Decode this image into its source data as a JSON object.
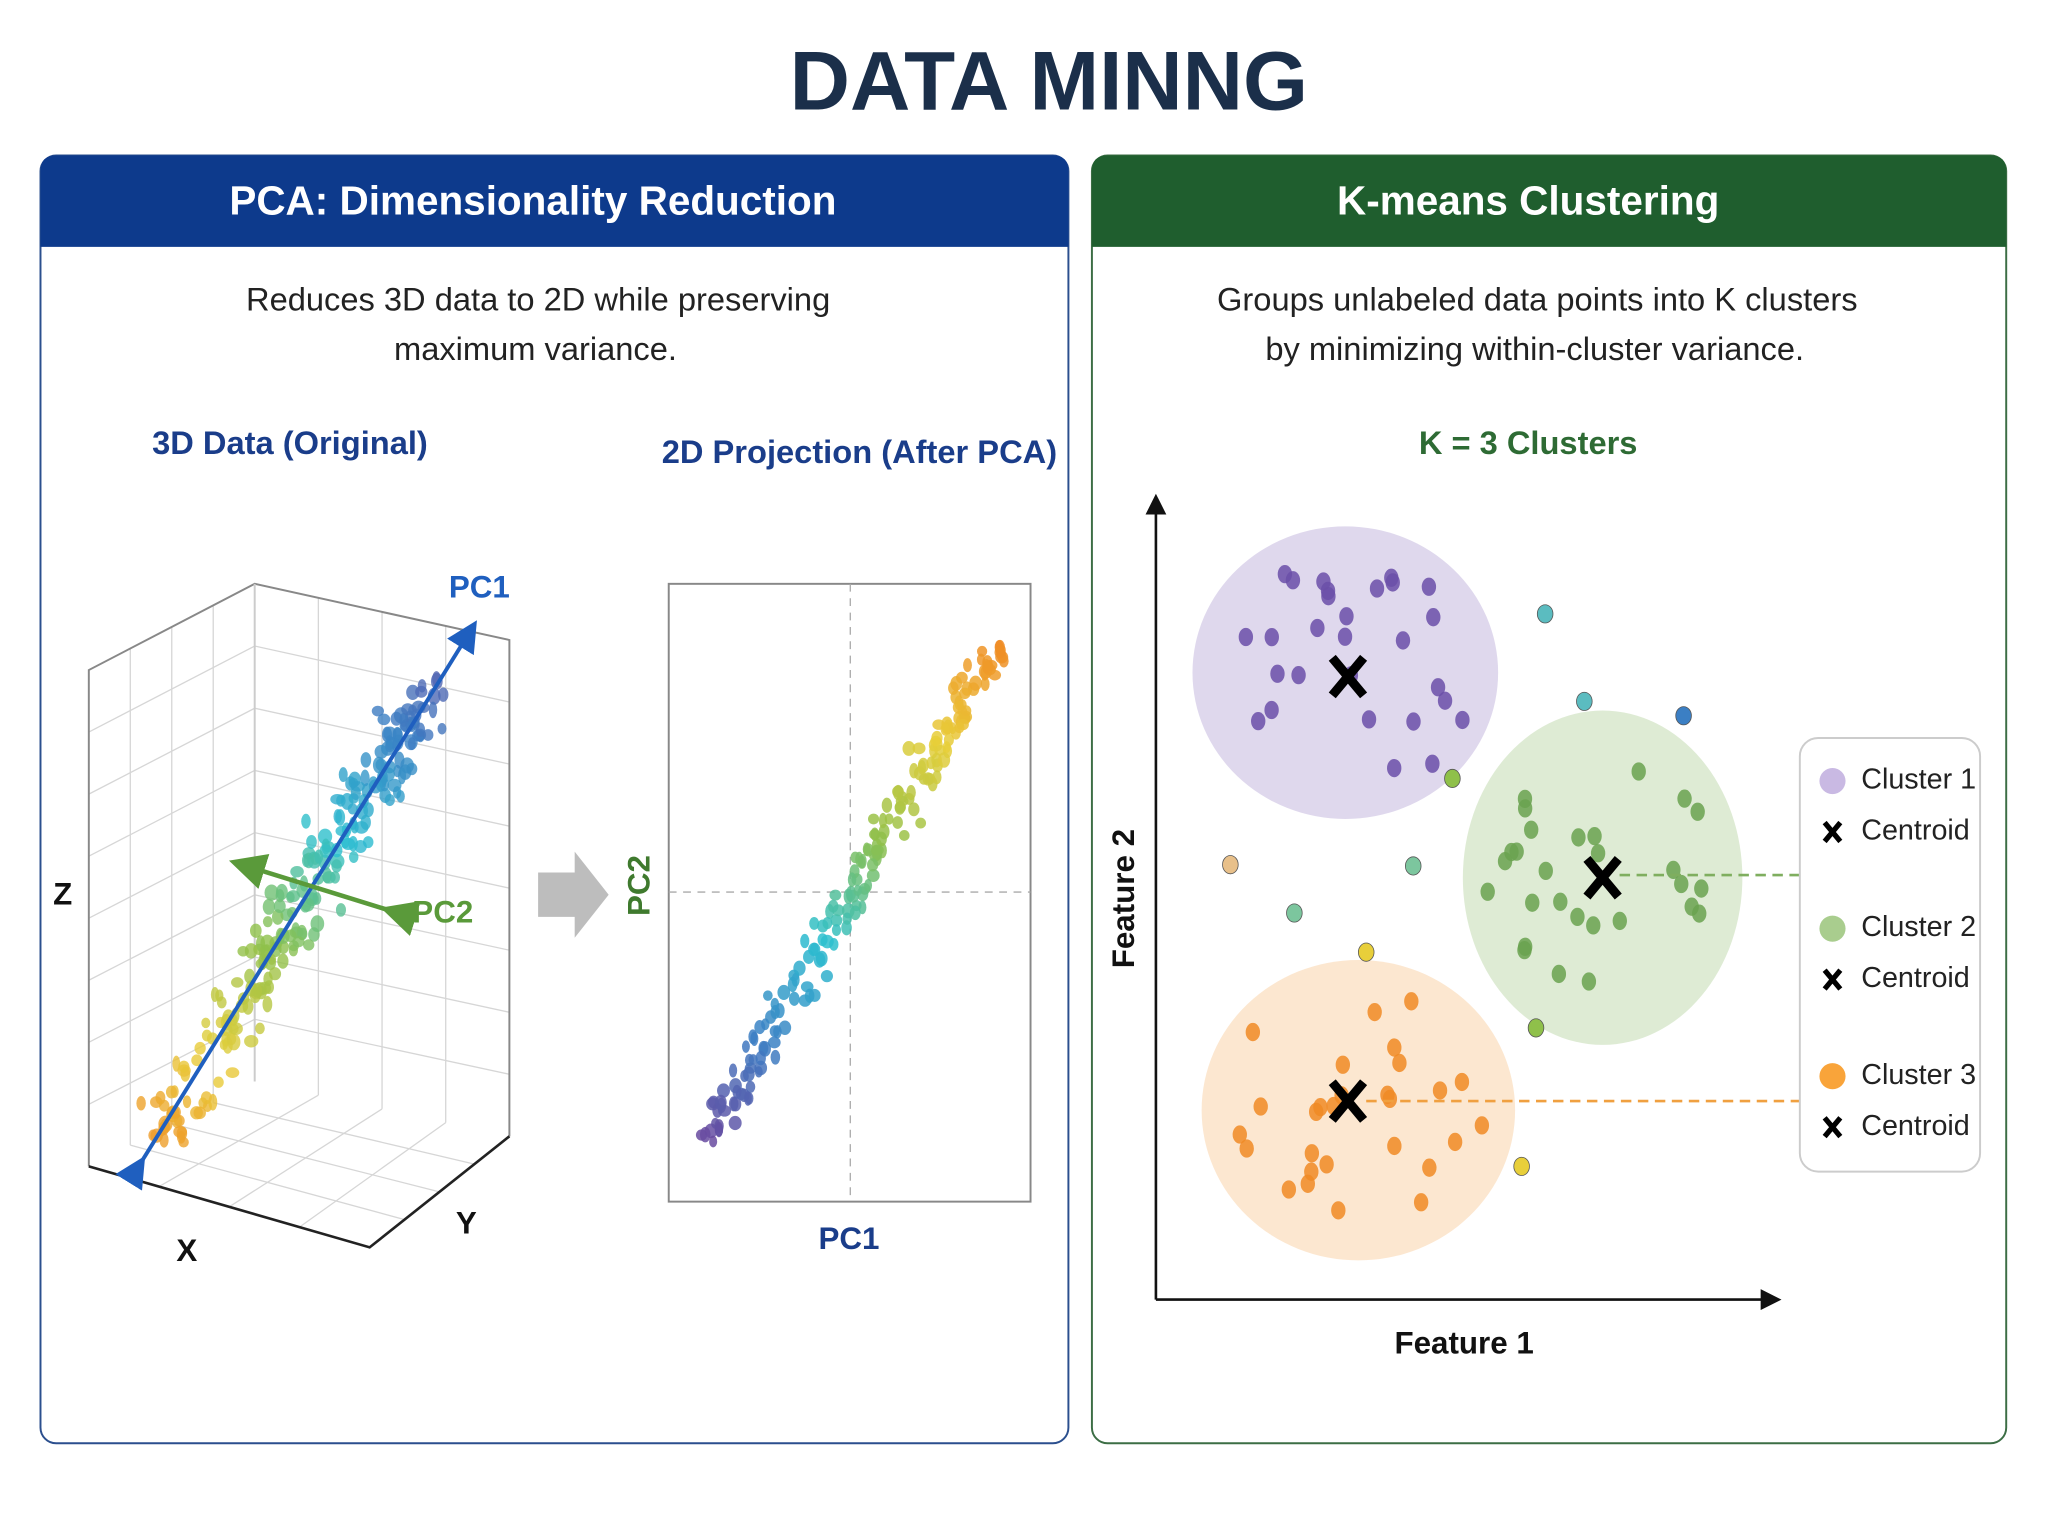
{
  "title": "DATA MINNG",
  "pca": {
    "header": "PCA: Dimensionality Reduction",
    "description": [
      "Reduces 3D data to 2D while preserving",
      "maximum variance."
    ],
    "plot_3d": {
      "title": "3D Data (Original)",
      "x_label": "X",
      "y_label": "Y",
      "z_label": "Z",
      "pc1_label": "PC1",
      "pc2_label": "PC2"
    },
    "plot_2d": {
      "title": "2D Projection (After PCA)",
      "x_label": "PC1",
      "y_label": "PC2"
    }
  },
  "kmeans": {
    "header": "K-means Clustering",
    "description": [
      "Groups unlabeled data points into K clusters",
      "by minimizing within-cluster variance."
    ],
    "subtitle": "K = 3 Clusters",
    "x_label": "Feature 1",
    "y_label": "Feature 2",
    "legend": [
      {
        "label": "Cluster 1",
        "centroid": "Centroid"
      },
      {
        "label": "Cluster 2",
        "centroid": "Centroid"
      },
      {
        "label": "Cluster 3",
        "centroid": "Centroid"
      }
    ]
  }
}
